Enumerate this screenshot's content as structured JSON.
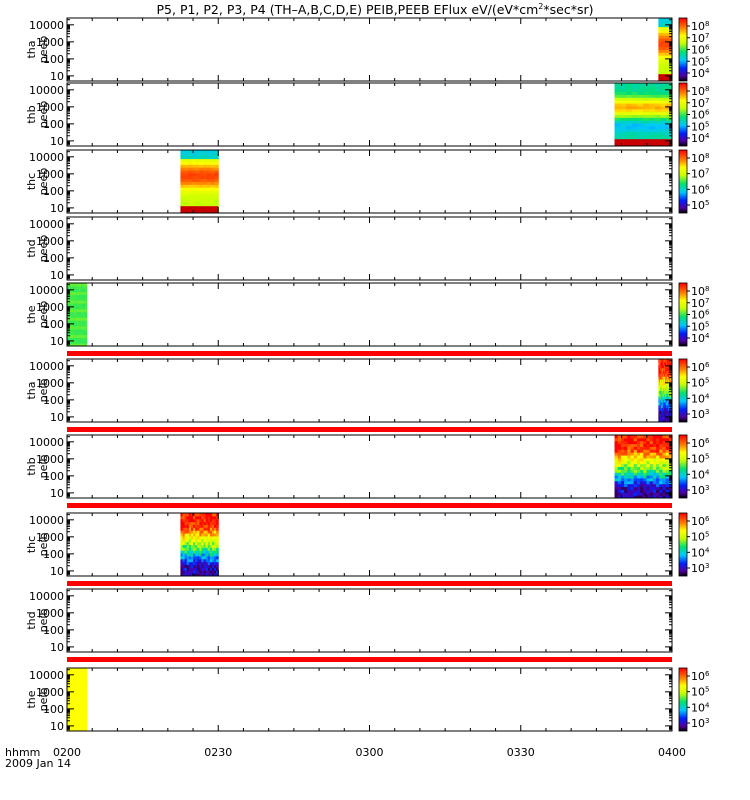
{
  "title": {
    "prefix": "P5, P1, P2, P3, P4 (TH–A,B,C,D,E) PEIB,PEEB EFlux eV/(eV*cm",
    "sup": "2",
    "suffix": "*sec*sr)"
  },
  "time_axis": {
    "label": "hhmm",
    "date": "2009 Jan 14",
    "ticks": [
      "0200",
      "0230",
      "0300",
      "0330",
      "0400"
    ],
    "start_minutes": 120,
    "end_minutes": 240
  },
  "chart_data": {
    "type": "heatmap",
    "energy_ticks": [
      "10",
      "100",
      "1000",
      "10000"
    ],
    "energy_range_log10": [
      0.7,
      4.4
    ],
    "panels": [
      {
        "id": "tha-peeb",
        "probe": "tha",
        "product": "peeb",
        "t0": 237.3,
        "t1": 240,
        "kind": "peeb-hot",
        "belt": true,
        "colorbar_exp": [
          4,
          5,
          6,
          7,
          8
        ],
        "separator_after": false
      },
      {
        "id": "thb-peeb",
        "probe": "thb",
        "product": "peeb",
        "t0": 228.6,
        "t1": 240,
        "kind": "peeb-cool",
        "belt": true,
        "colorbar_exp": [
          4,
          5,
          6,
          7,
          8
        ],
        "separator_after": false
      },
      {
        "id": "thc-peeb",
        "probe": "thc",
        "product": "peeb",
        "t0": 142.5,
        "t1": 150,
        "kind": "peeb-hot",
        "belt": true,
        "colorbar_exp": [
          5,
          6,
          7,
          8
        ],
        "separator_after": false
      },
      {
        "id": "thd-peeb",
        "probe": "thd",
        "product": "peeb",
        "t0": 0,
        "t1": 0,
        "kind": "none",
        "belt": false,
        "colorbar_exp": [],
        "separator_after": false
      },
      {
        "id": "the-peeb",
        "probe": "the",
        "product": "peeb",
        "t0": 120,
        "t1": 123.9,
        "kind": "peeb-flat",
        "belt": false,
        "colorbar_exp": [
          4,
          5,
          6,
          7,
          8
        ],
        "separator_after": true
      },
      {
        "id": "tha-peib",
        "probe": "tha",
        "product": "peib",
        "t0": 237.3,
        "t1": 240,
        "kind": "peib",
        "belt": false,
        "colorbar_exp": [
          3,
          4,
          5,
          6
        ],
        "separator_after": true
      },
      {
        "id": "thb-peib",
        "probe": "thb",
        "product": "peib",
        "t0": 228.6,
        "t1": 240,
        "kind": "peib",
        "belt": false,
        "colorbar_exp": [
          3,
          4,
          5,
          6
        ],
        "separator_after": true
      },
      {
        "id": "thc-peib",
        "probe": "thc",
        "product": "peib",
        "t0": 142.5,
        "t1": 150,
        "kind": "peib",
        "belt": false,
        "colorbar_exp": [
          3,
          4,
          5,
          6
        ],
        "separator_after": true
      },
      {
        "id": "thd-peib",
        "probe": "thd",
        "product": "peib",
        "t0": 0,
        "t1": 0,
        "kind": "none",
        "belt": false,
        "colorbar_exp": [],
        "separator_after": true
      },
      {
        "id": "the-peib",
        "probe": "the",
        "product": "peib",
        "t0": 120,
        "t1": 123.9,
        "kind": "peib-yellow",
        "belt": false,
        "colorbar_exp": [
          3,
          4,
          5,
          6
        ],
        "separator_after": false
      }
    ],
    "colors": {
      "separator": "#ff0000",
      "belt": "#c80000",
      "flat_green": "#40e040",
      "flat_yellow": "#ffff20"
    }
  }
}
